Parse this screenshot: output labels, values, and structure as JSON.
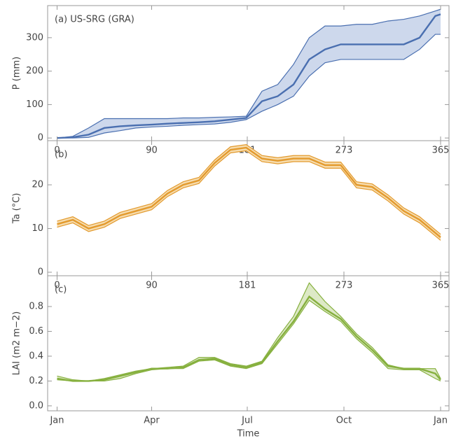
{
  "chart_data": [
    {
      "type": "line",
      "panel_label": "(a) US-SRG (GRA)",
      "y_label": "P (mm)",
      "x": [
        0,
        15,
        30,
        45,
        60,
        75,
        90,
        105,
        120,
        135,
        150,
        165,
        180,
        195,
        210,
        225,
        240,
        255,
        270,
        285,
        300,
        315,
        330,
        345,
        360,
        365
      ],
      "series": [
        {
          "color": "#4a6fb0",
          "band_color": "#cdd8ec",
          "values": [
            0,
            2,
            10,
            30,
            35,
            38,
            40,
            43,
            45,
            47,
            50,
            55,
            60,
            110,
            125,
            160,
            235,
            265,
            280,
            280,
            280,
            280,
            280,
            300,
            365,
            370
          ],
          "lower": [
            0,
            0,
            2,
            15,
            22,
            30,
            33,
            35,
            38,
            40,
            42,
            47,
            55,
            80,
            100,
            125,
            185,
            225,
            235,
            235,
            235,
            235,
            235,
            265,
            310,
            310
          ],
          "upper": [
            0,
            5,
            30,
            58,
            58,
            58,
            58,
            58,
            60,
            60,
            62,
            63,
            65,
            140,
            160,
            220,
            300,
            335,
            335,
            340,
            340,
            350,
            355,
            365,
            380,
            385
          ]
        }
      ],
      "xlim": [
        -9,
        373
      ],
      "xticks": [
        0,
        90,
        181,
        273,
        365
      ],
      "ylim": [
        -8,
        396
      ],
      "yticks": [
        0,
        100,
        200,
        300
      ]
    },
    {
      "type": "line",
      "panel_label": "(b)",
      "y_label": "Ta (°C)",
      "x": [
        0,
        15,
        30,
        45,
        60,
        75,
        90,
        105,
        120,
        135,
        150,
        165,
        180,
        195,
        210,
        225,
        240,
        255,
        270,
        285,
        300,
        315,
        330,
        345,
        360,
        365
      ],
      "series": [
        {
          "color": "#e39a2d",
          "band_color": "#f6dcae",
          "values": [
            11,
            12,
            10,
            11,
            13,
            14,
            15,
            18,
            20,
            21,
            25,
            28,
            28.5,
            26,
            25.5,
            26,
            26,
            24.5,
            24.5,
            20,
            19.5,
            17,
            14,
            12,
            9,
            8
          ],
          "lower": [
            10.3,
            11.3,
            9.3,
            10.3,
            12.3,
            13.3,
            14.3,
            17.3,
            19.3,
            20.3,
            24.3,
            27.3,
            27.8,
            25.3,
            24.8,
            25.3,
            25.3,
            23.8,
            23.8,
            19.3,
            18.8,
            16.3,
            13.3,
            11.3,
            8.3,
            7.3
          ],
          "upper": [
            11.7,
            12.7,
            10.7,
            11.7,
            13.7,
            14.7,
            15.7,
            18.7,
            20.7,
            21.7,
            25.7,
            28.7,
            29.2,
            26.7,
            26.2,
            26.7,
            26.7,
            25.2,
            25.2,
            20.7,
            20.2,
            17.7,
            14.7,
            12.7,
            9.7,
            8.7
          ]
        }
      ],
      "xlim": [
        -9,
        373
      ],
      "xticks": [
        0,
        90,
        181,
        273,
        365
      ],
      "ylim": [
        -0.8,
        30.1
      ],
      "yticks": [
        0,
        10,
        20
      ]
    },
    {
      "type": "line",
      "panel_label": "(c)",
      "y_label": "LAI (m2 m−2)",
      "x_label": "Time",
      "x": [
        0,
        15,
        30,
        45,
        60,
        75,
        90,
        105,
        120,
        135,
        150,
        165,
        180,
        195,
        210,
        225,
        240,
        255,
        270,
        285,
        300,
        315,
        330,
        345,
        360,
        365
      ],
      "series": [
        {
          "color": "#86b03e",
          "band_color": "#dde9c6",
          "values": [
            0.22,
            0.2,
            0.2,
            0.21,
            0.24,
            0.27,
            0.3,
            0.3,
            0.31,
            0.37,
            0.38,
            0.33,
            0.31,
            0.35,
            0.52,
            0.68,
            0.88,
            0.78,
            0.7,
            0.56,
            0.45,
            0.32,
            0.3,
            0.3,
            0.26,
            0.21
          ],
          "lower": [
            0.21,
            0.2,
            0.2,
            0.2,
            0.22,
            0.26,
            0.29,
            0.3,
            0.3,
            0.36,
            0.37,
            0.32,
            0.3,
            0.34,
            0.5,
            0.66,
            0.85,
            0.76,
            0.68,
            0.54,
            0.43,
            0.3,
            0.29,
            0.29,
            0.22,
            0.2
          ],
          "upper": [
            0.24,
            0.21,
            0.2,
            0.22,
            0.25,
            0.28,
            0.3,
            0.31,
            0.32,
            0.39,
            0.39,
            0.34,
            0.32,
            0.36,
            0.55,
            0.72,
            0.99,
            0.84,
            0.72,
            0.58,
            0.47,
            0.33,
            0.3,
            0.3,
            0.3,
            0.22
          ]
        }
      ],
      "xlim": [
        -9,
        373
      ],
      "xticks": [
        {
          "value": 0,
          "label": "Jan"
        },
        {
          "value": 90,
          "label": "Apr"
        },
        {
          "value": 181,
          "label": "Jul"
        },
        {
          "value": 273,
          "label": "Oct"
        },
        {
          "value": 365,
          "label": "Jan"
        }
      ],
      "ylim": [
        -0.04,
        1.048
      ],
      "yticks": [
        {
          "value": 0,
          "label": "0.0"
        },
        0.2,
        0.4,
        0.6,
        0.8
      ]
    }
  ]
}
